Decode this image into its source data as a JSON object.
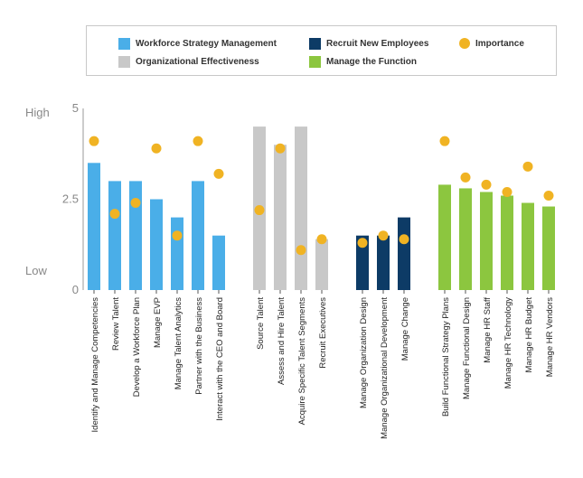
{
  "chart_data": {
    "type": "bar",
    "yaxis": {
      "min": 0,
      "max": 5,
      "ticks": [
        {
          "value": 0,
          "label": "0"
        },
        {
          "value": 2.5,
          "label": "2.5"
        },
        {
          "value": 5,
          "label": "5"
        }
      ],
      "side_labels": {
        "high": "High",
        "low": "Low"
      }
    },
    "legend": [
      {
        "name": "Workforce Strategy Management",
        "color": "#4aaee8",
        "kind": "bar"
      },
      {
        "name": "Recruit New Employees",
        "color": "#0d3b66",
        "kind": "bar"
      },
      {
        "name": "Importance",
        "color": "#f0b323",
        "kind": "dot"
      },
      {
        "name": "Organizational Effectiveness",
        "color": "#c8c8c8",
        "kind": "bar"
      },
      {
        "name": "Manage the Function",
        "color": "#8cc63f",
        "kind": "bar"
      }
    ],
    "groups": [
      {
        "name": "Workforce Strategy Management",
        "color": "#4aaee8",
        "items": [
          {
            "label": "Identify and Manage Competencies",
            "value": 3.5,
            "importance": 4.1
          },
          {
            "label": "Review Talent",
            "value": 3.0,
            "importance": 2.1
          },
          {
            "label": "Develop a Workforce Plan",
            "value": 3.0,
            "importance": 2.4
          },
          {
            "label": "Manage EVP",
            "value": 2.5,
            "importance": 3.9
          },
          {
            "label": "Manage Talent Analytics",
            "value": 2.0,
            "importance": 1.5
          },
          {
            "label": "Partner with the Business",
            "value": 3.0,
            "importance": 4.1
          },
          {
            "label": "Interact with the CEO and Board",
            "value": 1.5,
            "importance": 3.2
          }
        ]
      },
      {
        "name": "Organizational Effectiveness",
        "color": "#c8c8c8",
        "items": [
          {
            "label": "Source Talent",
            "value": 4.5,
            "importance": 2.2
          },
          {
            "label": "Assess and Hire Talent",
            "value": 4.0,
            "importance": 3.9
          },
          {
            "label": "Acquire Specific Talent Segments",
            "value": 4.5,
            "importance": 1.1
          },
          {
            "label": "Recruit Executives",
            "value": 1.4,
            "importance": 1.4
          }
        ]
      },
      {
        "name": "Recruit New Employees",
        "color": "#0d3b66",
        "items": [
          {
            "label": "Manage Organization Design",
            "value": 1.5,
            "importance": 1.3
          },
          {
            "label": "Manage Organizational Development",
            "value": 1.5,
            "importance": 1.5
          },
          {
            "label": "Manage Change",
            "value": 2.0,
            "importance": 1.4
          }
        ]
      },
      {
        "name": "Manage the Function",
        "color": "#8cc63f",
        "items": [
          {
            "label": "Build Functional Strategy Plans",
            "value": 2.9,
            "importance": 4.1
          },
          {
            "label": "Manage Functional Design",
            "value": 2.8,
            "importance": 3.1
          },
          {
            "label": "Manage HR Staff",
            "value": 2.7,
            "importance": 2.9
          },
          {
            "label": "Manage HR Technology",
            "value": 2.6,
            "importance": 2.7
          },
          {
            "label": "Manage HR Budget",
            "value": 2.4,
            "importance": 3.4
          },
          {
            "label": "Manage HR Vendors",
            "value": 2.3,
            "importance": 2.6
          }
        ]
      }
    ]
  }
}
